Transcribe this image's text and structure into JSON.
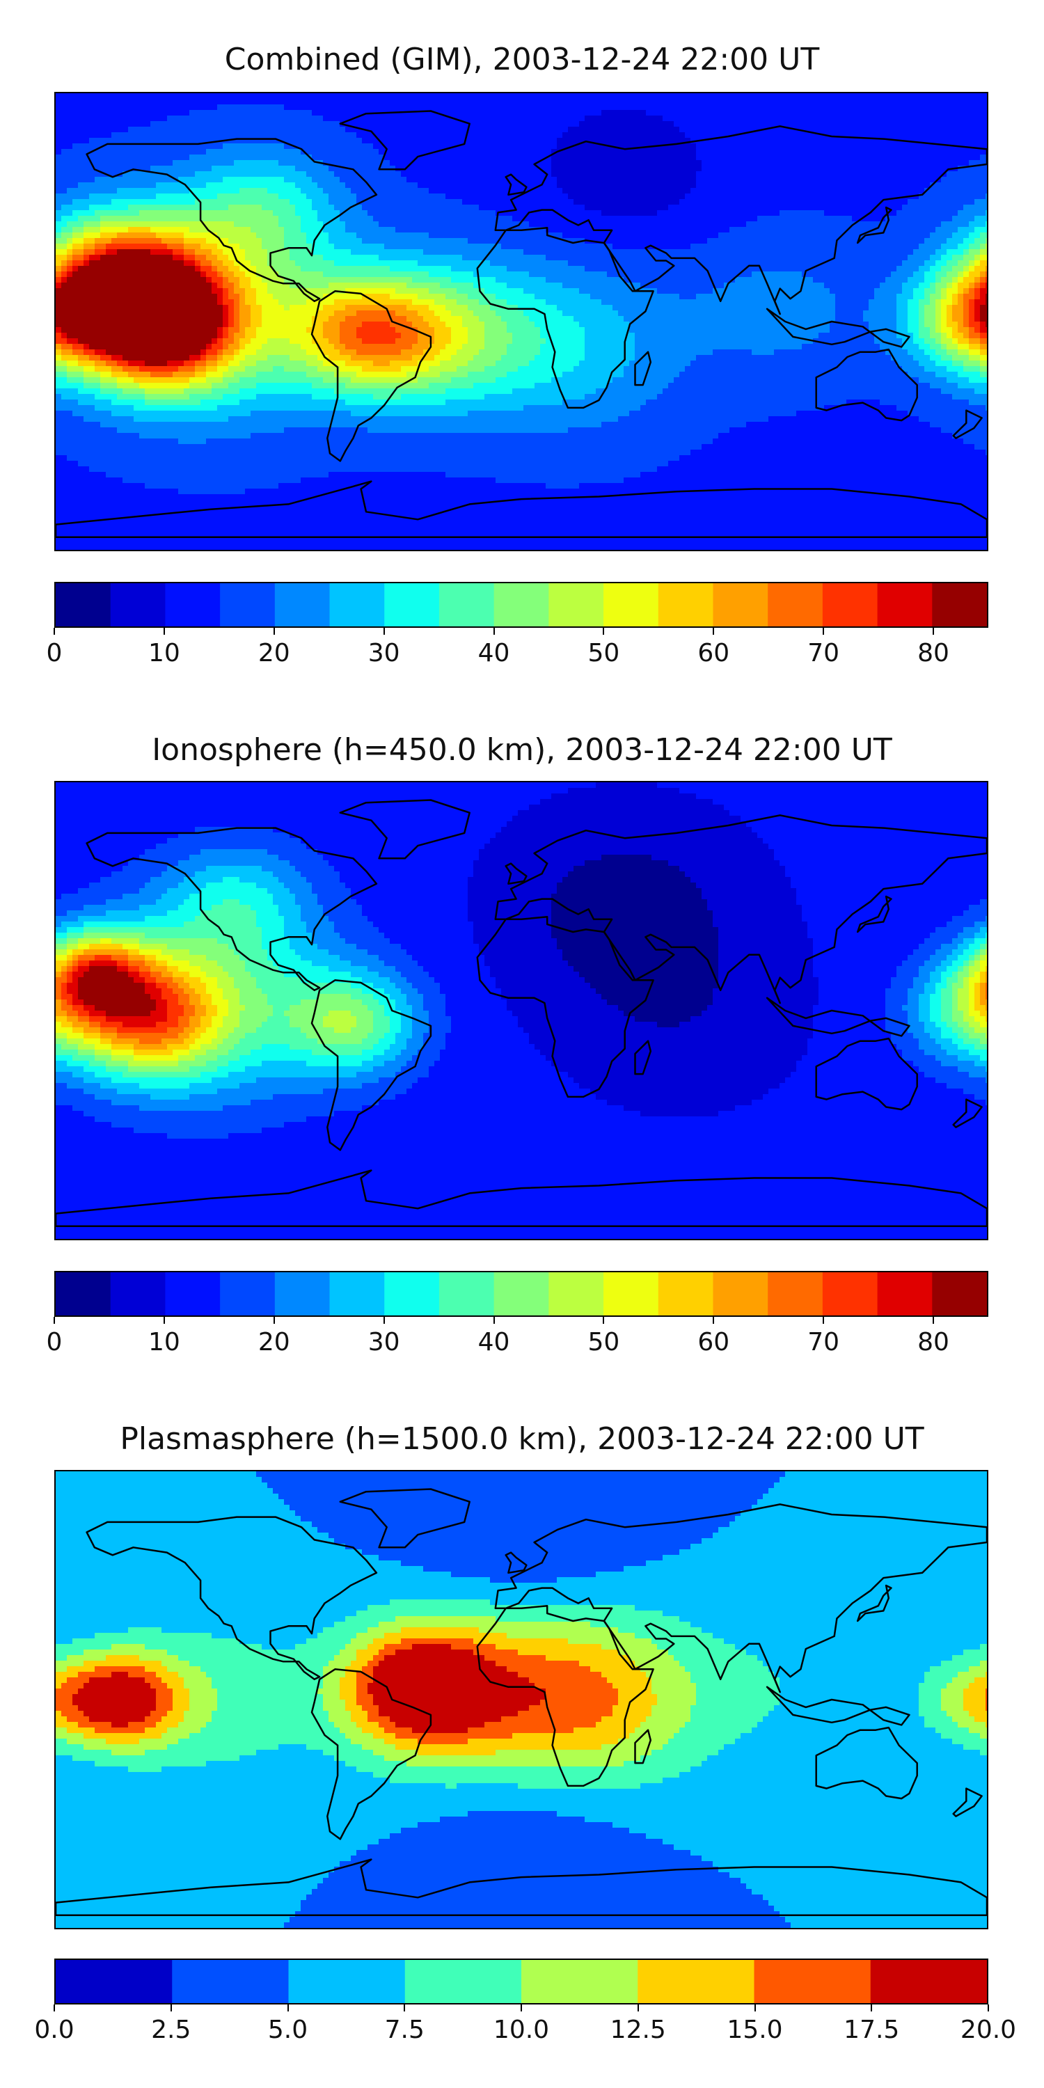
{
  "chart_data": [
    {
      "type": "heatmap",
      "title": "Combined (GIM), 2003-12-24 22:00 UT",
      "colorbar": {
        "levels": [
          0,
          5,
          10,
          15,
          20,
          25,
          30,
          35,
          40,
          45,
          50,
          55,
          60,
          65,
          70,
          75,
          80,
          85
        ],
        "tick_labels": [
          "0",
          "10",
          "20",
          "30",
          "40",
          "50",
          "60",
          "70",
          "80"
        ],
        "tick_values": [
          0,
          10,
          20,
          30,
          40,
          50,
          60,
          70,
          80
        ],
        "colors": [
          "#00008f",
          "#0000d6",
          "#0010ff",
          "#0048ff",
          "#0088ff",
          "#00c4ff",
          "#10ffee",
          "#4cffb0",
          "#84ff7a",
          "#bcff40",
          "#eeff10",
          "#ffd000",
          "#ffa000",
          "#ff6a00",
          "#ff3200",
          "#e00000",
          "#960000"
        ]
      },
      "blobs": [
        {
          "lon": -155,
          "lat": 15,
          "value": 72,
          "spread": 22
        },
        {
          "lon": -140,
          "lat": -3,
          "value": 68,
          "spread": 20
        },
        {
          "lon": -120,
          "lat": 5,
          "value": 45,
          "spread": 35
        },
        {
          "lon": -60,
          "lat": -5,
          "value": 52,
          "spread": 20
        },
        {
          "lon": -30,
          "lat": -5,
          "value": 40,
          "spread": 25
        },
        {
          "lon": 175,
          "lat": 0,
          "value": 48,
          "spread": 18
        },
        {
          "lon": -100,
          "lat": 45,
          "value": 30,
          "spread": 20
        },
        {
          "lon": 20,
          "lat": -10,
          "value": 28,
          "spread": 30
        },
        {
          "lon": 100,
          "lat": 5,
          "value": 22,
          "spread": 25
        },
        {
          "lon": 40,
          "lat": 60,
          "value": 6,
          "spread": 25
        },
        {
          "lon": -20,
          "lat": -60,
          "value": 14,
          "spread": 30
        }
      ],
      "base_value": 14
    },
    {
      "type": "heatmap",
      "title": "Ionosphere  (h=450.0 km), 2003-12-24 22:00 UT",
      "colorbar": {
        "levels": [
          0,
          5,
          10,
          15,
          20,
          25,
          30,
          35,
          40,
          45,
          50,
          55,
          60,
          65,
          70,
          75,
          80,
          85
        ],
        "tick_labels": [
          "0",
          "10",
          "20",
          "30",
          "40",
          "50",
          "60",
          "70",
          "80"
        ],
        "tick_values": [
          0,
          10,
          20,
          30,
          40,
          50,
          60,
          70,
          80
        ],
        "colors": [
          "#00008f",
          "#0000d6",
          "#0010ff",
          "#0048ff",
          "#0088ff",
          "#00c4ff",
          "#10ffee",
          "#4cffb0",
          "#84ff7a",
          "#bcff40",
          "#eeff10",
          "#ffd000",
          "#ffa000",
          "#ff6a00",
          "#ff3200",
          "#e00000",
          "#960000"
        ]
      },
      "blobs": [
        {
          "lon": -165,
          "lat": 15,
          "value": 52,
          "spread": 15
        },
        {
          "lon": -145,
          "lat": -3,
          "value": 52,
          "spread": 20
        },
        {
          "lon": -120,
          "lat": 5,
          "value": 38,
          "spread": 35
        },
        {
          "lon": -65,
          "lat": -5,
          "value": 38,
          "spread": 18
        },
        {
          "lon": 175,
          "lat": 0,
          "value": 35,
          "spread": 18
        },
        {
          "lon": -110,
          "lat": 45,
          "value": 25,
          "spread": 20
        },
        {
          "lon": 40,
          "lat": 40,
          "value": 2,
          "spread": 30
        },
        {
          "lon": 60,
          "lat": 0,
          "value": 6,
          "spread": 30
        },
        {
          "lon": -20,
          "lat": -60,
          "value": 12,
          "spread": 30
        }
      ],
      "base_value": 11
    },
    {
      "type": "heatmap",
      "title": "Plasmasphere (h=1500.0 km), 2003-12-24 22:00 UT",
      "colorbar": {
        "levels": [
          0,
          2.5,
          5,
          7.5,
          10,
          12.5,
          15,
          17.5,
          20
        ],
        "tick_labels": [
          "0.0",
          "2.5",
          "5.0",
          "7.5",
          "10.0",
          "12.5",
          "15.0",
          "17.5",
          "20.0"
        ],
        "tick_values": [
          0,
          2.5,
          5,
          7.5,
          10,
          12.5,
          15,
          17.5,
          20
        ],
        "colors": [
          "#0000c8",
          "#0050ff",
          "#00c0ff",
          "#40ffb8",
          "#b0ff50",
          "#ffd000",
          "#ff5800",
          "#c80000"
        ]
      },
      "blobs": [
        {
          "lon": -155,
          "lat": 0,
          "value": 19,
          "spread": 16
        },
        {
          "lon": -40,
          "lat": 5,
          "value": 19,
          "spread": 20
        },
        {
          "lon": -10,
          "lat": 0,
          "value": 13,
          "spread": 35
        },
        {
          "lon": 30,
          "lat": 0,
          "value": 12,
          "spread": 30
        },
        {
          "lon": -120,
          "lat": 0,
          "value": 9,
          "spread": 30
        },
        {
          "lon": 100,
          "lat": 5,
          "value": 7,
          "spread": 30
        },
        {
          "lon": 175,
          "lat": 0,
          "value": 11,
          "spread": 15
        },
        {
          "lon": 0,
          "lat": -45,
          "value": 2,
          "spread": 30
        },
        {
          "lon": 0,
          "lat": 60,
          "value": 2,
          "spread": 30
        }
      ],
      "base_value": 5
    }
  ]
}
